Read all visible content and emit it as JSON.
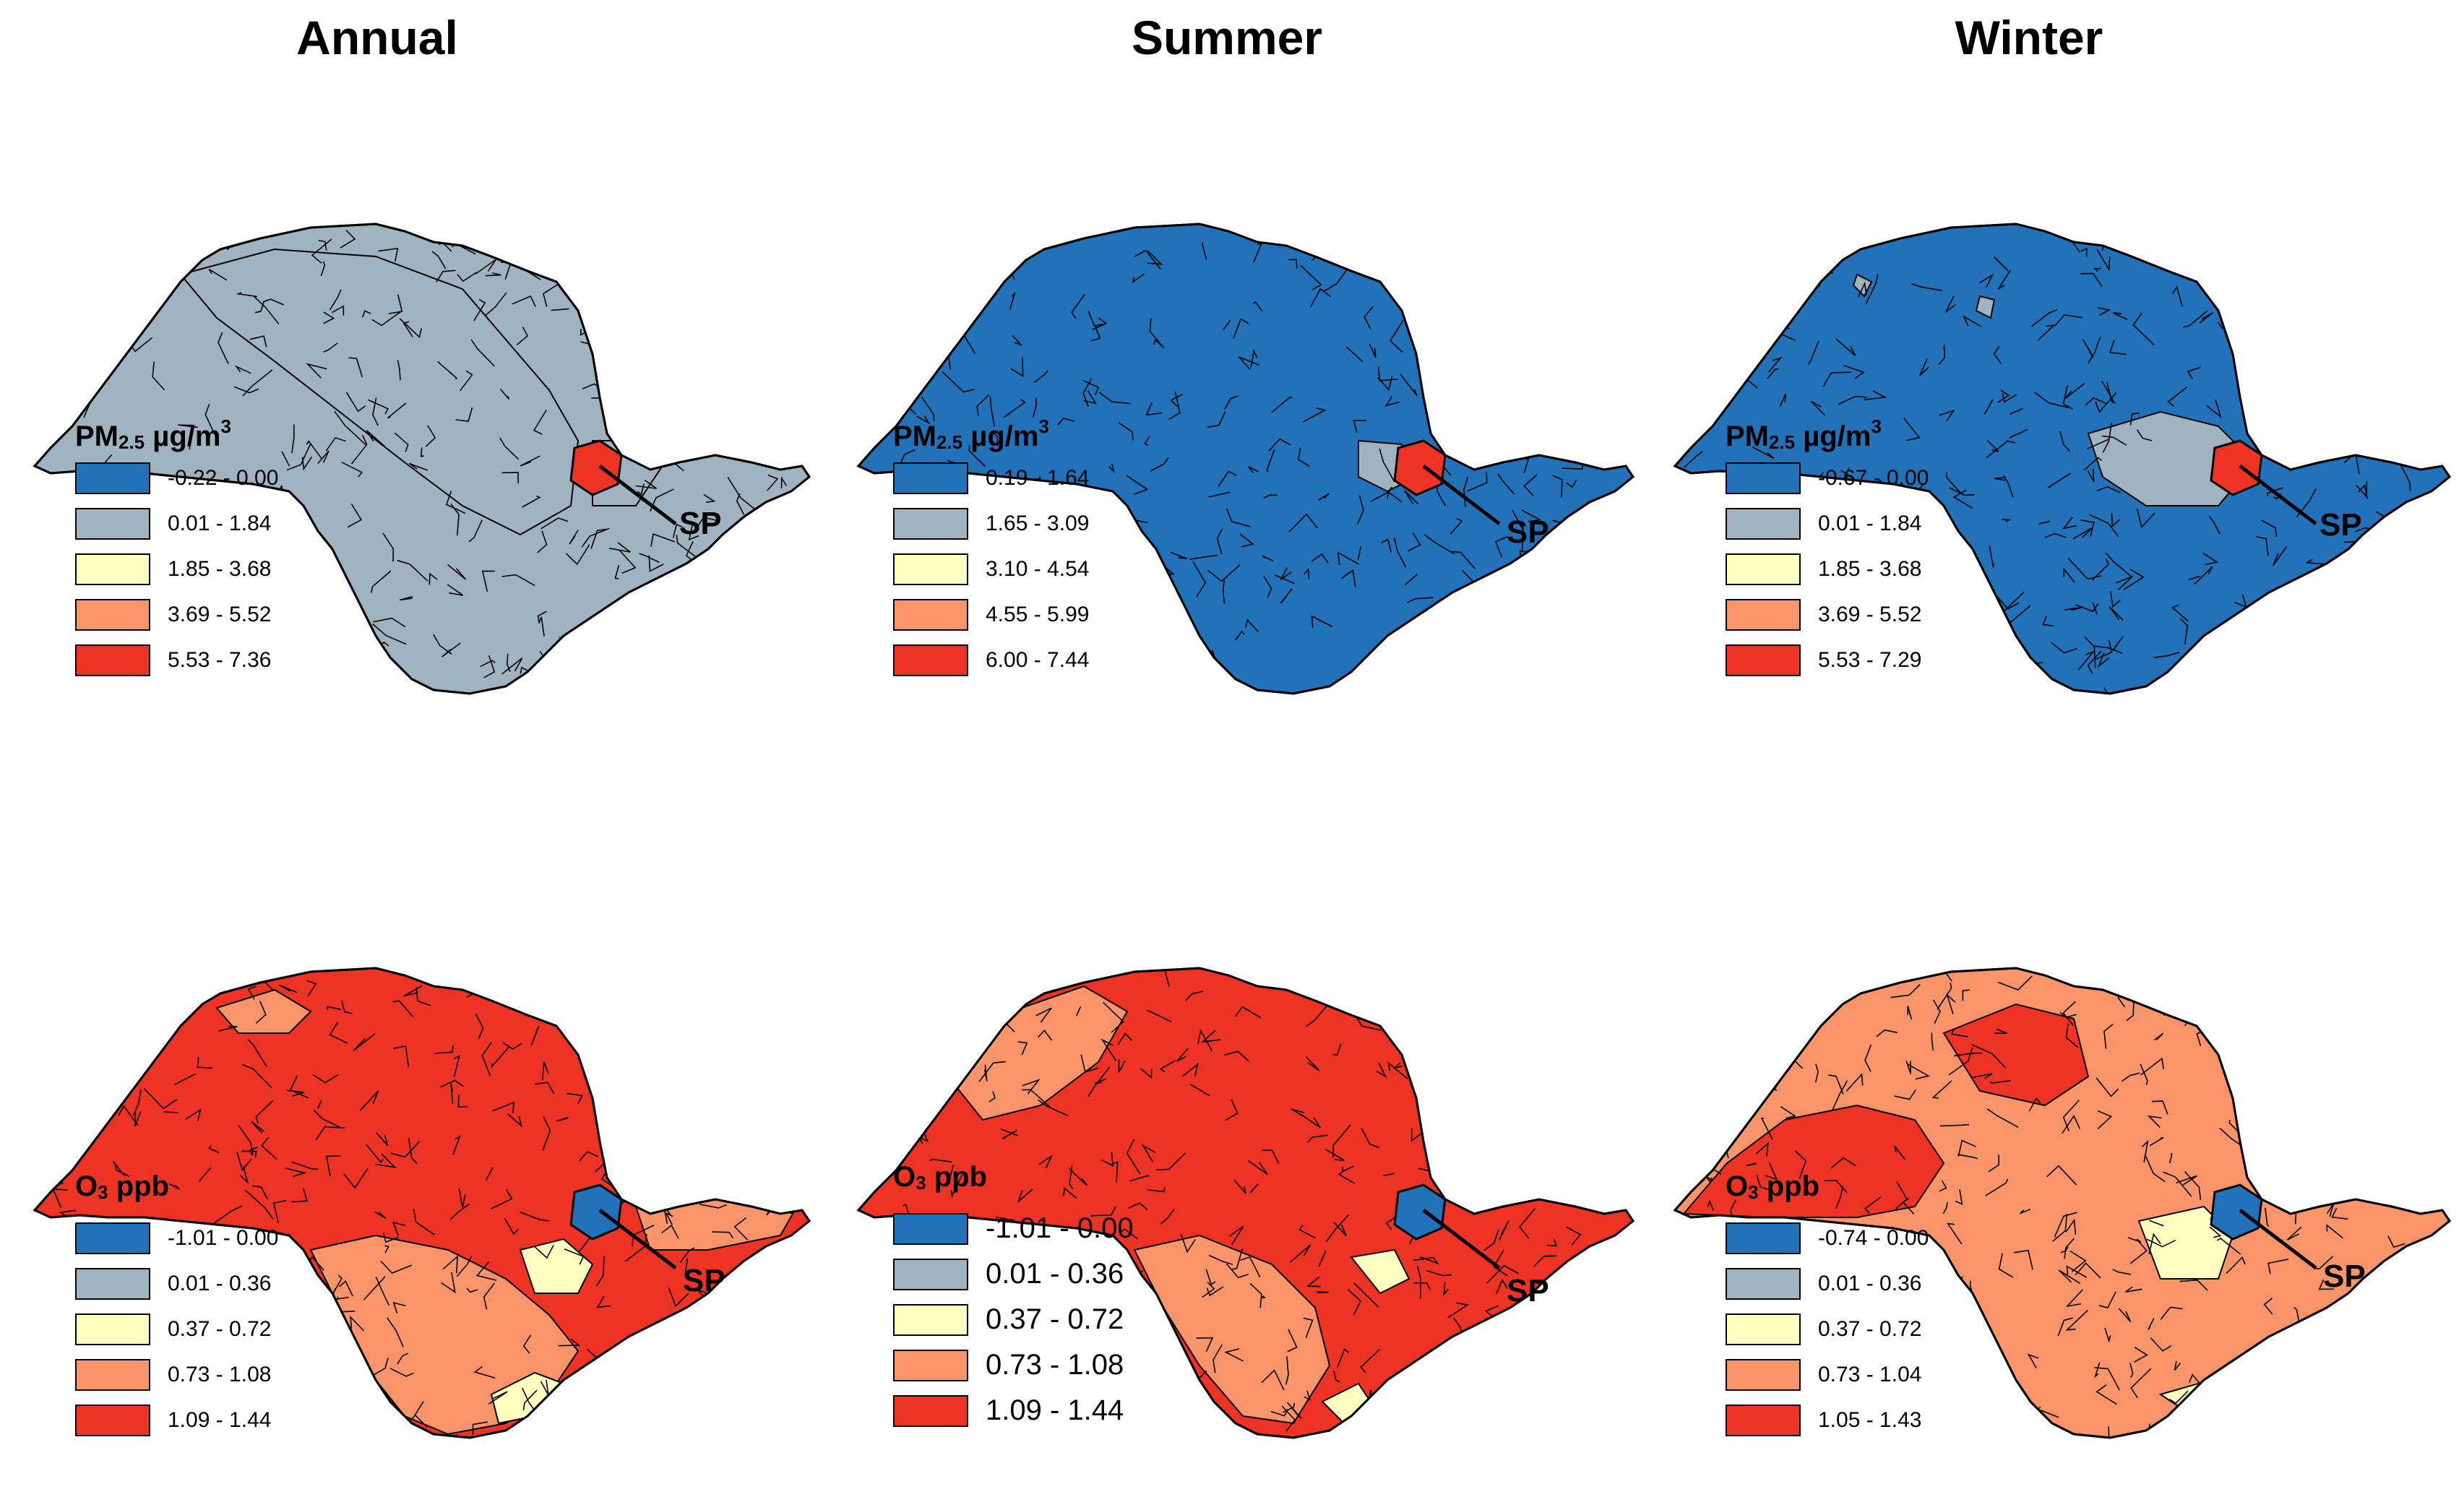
{
  "column_titles": [
    "Annual",
    "Summer",
    "Winter"
  ],
  "city_label": "SP",
  "colors": {
    "blue": "#2172b8",
    "gray": "#9fb3c1",
    "cream": "#ffffc0",
    "salmon": "#fb9468",
    "red": "#ee3324",
    "border": "#000000"
  },
  "pm25": {
    "legend_title": "PM",
    "legend_sub": "2.5",
    "legend_unit": " µg/m",
    "legend_sup": "3",
    "annual": [
      "-0.22 - 0.00",
      "0.01 - 1.84",
      "1.85 - 3.68",
      "3.69 - 5.52",
      "5.53 - 7.36"
    ],
    "summer": [
      "0.19 - 1.64",
      "1.65 - 3.09",
      "3.10 - 4.54",
      "4.55 - 5.99",
      "6.00 - 7.44"
    ],
    "winter": [
      "-0.67 - 0.00",
      "0.01 - 1.84",
      "1.85 - 3.68",
      "3.69 - 5.52",
      "5.53 - 7.29"
    ]
  },
  "o3": {
    "legend_title": "O",
    "legend_sub": "3",
    "legend_unit": " ppb",
    "annual": [
      "-1.01 - 0.00",
      "0.01 - 0.36",
      "0.37 - 0.72",
      "0.73 - 1.08",
      "1.09 - 1.44"
    ],
    "summer": [
      "-1.01 - 0.00",
      "0.01 - 0.36",
      "0.37 - 0.72",
      "0.73 - 1.08",
      "1.09 - 1.44"
    ],
    "winter": [
      "-0.74 - 0.00",
      "0.01 - 0.36",
      "0.37 - 0.72",
      "0.73 - 1.04",
      "1.05 - 1.43"
    ]
  },
  "dominant_fill": {
    "pm25_annual": "gray",
    "pm25_summer": "blue",
    "pm25_winter": "blue",
    "o3_annual": "red",
    "o3_summer": "red",
    "o3_winter": "salmon"
  }
}
